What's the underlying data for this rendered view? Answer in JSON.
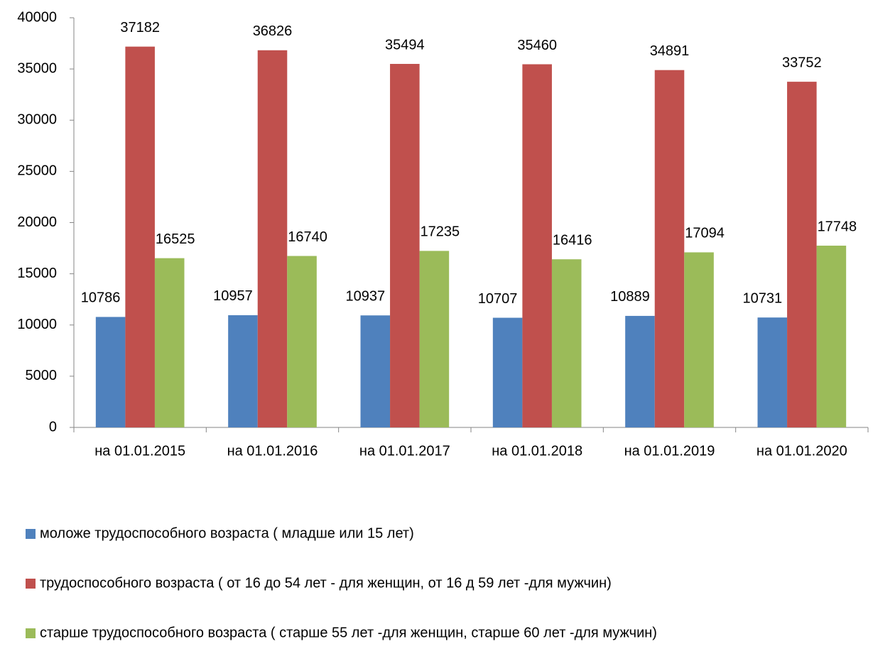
{
  "chart_data": {
    "type": "bar",
    "categories": [
      "на 01.01.2015",
      "на 01.01.2016",
      "на 01.01.2017",
      "на 01.01.2018",
      "на 01.01.2019",
      "на 01.01.2020"
    ],
    "series": [
      {
        "name": "моложе трудоспособного возраста ( младше или 15 лет)",
        "color": "#4f81bd",
        "values": [
          10786,
          10957,
          10937,
          10707,
          10889,
          10731
        ]
      },
      {
        "name": "трудоспособного возраста ( от 16 до 54 лет - для женщин, от 16 д 59 лет -для мужчин)",
        "color": "#c0504d",
        "values": [
          37182,
          36826,
          35494,
          35460,
          34891,
          33752
        ]
      },
      {
        "name": "старше трудоспособного возраста ( старше 55 лет -для женщин, старше 60 лет -для мужчин)",
        "color": "#9bbb59",
        "values": [
          16525,
          16740,
          17235,
          16416,
          17094,
          17748
        ]
      }
    ],
    "ylim": [
      0,
      40000
    ],
    "yticks": [
      0,
      5000,
      10000,
      15000,
      20000,
      25000,
      30000,
      35000,
      40000
    ],
    "grid": false,
    "legend": "bottom"
  }
}
